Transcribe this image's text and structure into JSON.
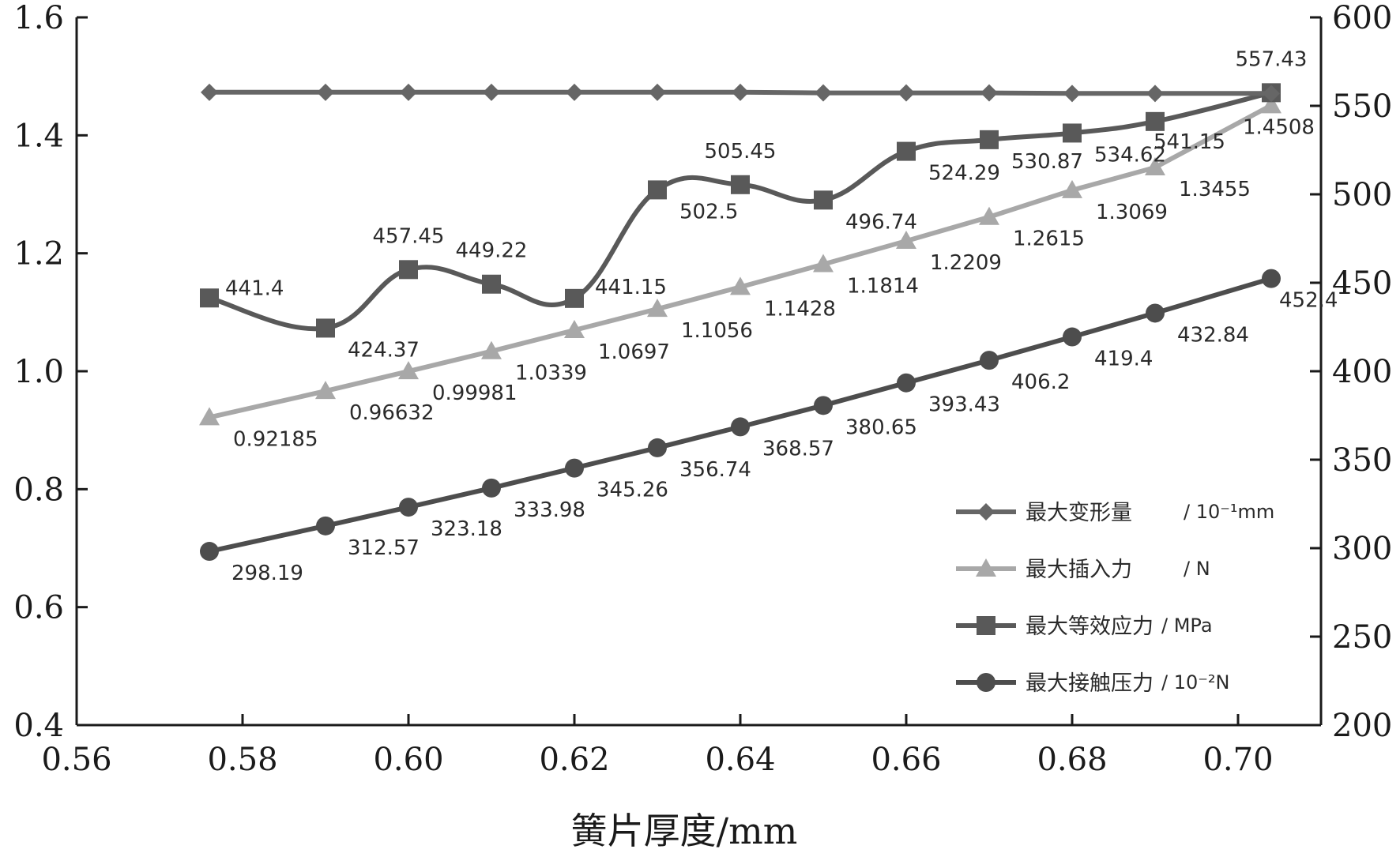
{
  "chart_data": {
    "type": "line",
    "xlabel": "簧片厚度/mm",
    "x_ticks": [
      "0.56",
      "0.58",
      "0.60",
      "0.62",
      "0.64",
      "0.66",
      "0.68",
      "0.70"
    ],
    "xlim": [
      0.56,
      0.71
    ],
    "ylim_left": [
      0.4,
      1.6
    ],
    "y_ticks_left": [
      "0.4",
      "0.6",
      "0.8",
      "1.0",
      "1.2",
      "1.4",
      "1.6"
    ],
    "ylim_right": [
      200,
      600
    ],
    "y_ticks_right": [
      "200",
      "250",
      "300",
      "350",
      "400",
      "450",
      "500",
      "550",
      "600"
    ],
    "x": [
      0.576,
      0.59,
      0.6,
      0.61,
      0.62,
      0.63,
      0.64,
      0.65,
      0.66,
      0.67,
      0.68,
      0.69,
      0.704
    ],
    "series": [
      {
        "name": "最大变形量",
        "unit": "/ 10⁻¹mm",
        "marker": "diamond",
        "color": "#666666",
        "axis": "left",
        "values": [
          1.473,
          1.473,
          1.473,
          1.473,
          1.473,
          1.473,
          1.473,
          1.472,
          1.472,
          1.472,
          1.471,
          1.471,
          1.471
        ],
        "labels": []
      },
      {
        "name": "最大插入力",
        "unit": "/ N",
        "marker": "triangle",
        "color": "#a8a8a8",
        "axis": "left",
        "values": [
          0.92185,
          0.96632,
          0.99981,
          1.0339,
          1.0697,
          1.1056,
          1.1428,
          1.1814,
          1.2209,
          1.2615,
          1.3069,
          1.3455,
          1.4508
        ],
        "labels": [
          "0.92185",
          "0.96632",
          "0.99981",
          "1.0339",
          "1.0697",
          "1.1056",
          "1.1428",
          "1.1814",
          "1.2209",
          "1.2615",
          "1.3069",
          "1.3455",
          "1.4508"
        ]
      },
      {
        "name": "最大等效应力",
        "unit": "/ MPa",
        "marker": "square",
        "color": "#595959",
        "axis": "right",
        "values": [
          441.4,
          424.37,
          457.45,
          449.22,
          441.15,
          502.5,
          505.45,
          496.74,
          524.29,
          530.87,
          534.62,
          541.15,
          557.43
        ],
        "labels": [
          "441.4",
          "424.37",
          "457.45",
          "449.22",
          "441.15",
          "502.5",
          "505.45",
          "496.74",
          "524.29",
          "530.87",
          "534.62",
          "541.15",
          "557.43"
        ]
      },
      {
        "name": "最大接触压力",
        "unit": "/ 10⁻²N",
        "marker": "circle",
        "color": "#4d4d4d",
        "axis": "right",
        "values": [
          298.19,
          312.57,
          323.18,
          333.98,
          345.26,
          356.74,
          368.57,
          380.65,
          393.43,
          406.2,
          419.4,
          432.84,
          452.4
        ],
        "labels": [
          "298.19",
          "312.57",
          "323.18",
          "333.98",
          "345.26",
          "356.74",
          "368.57",
          "380.65",
          "393.43",
          "406.2",
          "419.4",
          "432.84",
          "452.4"
        ]
      }
    ],
    "legend_position": "bottom-right",
    "grid": false
  }
}
